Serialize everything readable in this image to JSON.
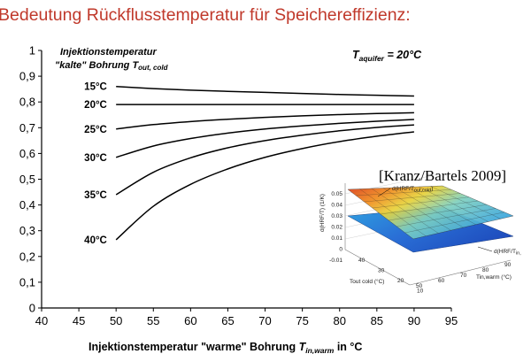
{
  "slide": {
    "title": "Bedeutung Rückflusstemperatur für Speichereffizienz:"
  },
  "chart_data": {
    "type": "line",
    "xlabel_main": "Injektionstemperatur \"warme\" Bohrung ",
    "xlabel_symbol": "T",
    "xlabel_sub": "in,warm",
    "xlabel_unit": " in °C",
    "ylabel": "",
    "xlim": [
      40,
      95
    ],
    "ylim": [
      0,
      1
    ],
    "x_ticks": [
      "40",
      "45",
      "50",
      "55",
      "60",
      "65",
      "70",
      "75",
      "80",
      "85",
      "90",
      "95"
    ],
    "y_ticks": [
      "0",
      "0,1",
      "0,2",
      "0,3",
      "0,4",
      "0,5",
      "0,6",
      "0,7",
      "0,8",
      "0,9",
      "1"
    ],
    "legend_title_line1": "Injektionstemperatur",
    "legend_title_line2_prefix": "\"kalte\" Bohrung ",
    "legend_title_symbol": "T",
    "legend_title_sub": "out, cold",
    "annotation": {
      "symbol": "T",
      "sub": "aquifer",
      "value": " = 20°C"
    },
    "grid": false,
    "series": [
      {
        "name": "15°C",
        "x": [
          50,
          55,
          60,
          65,
          70,
          75,
          80,
          85,
          90
        ],
        "values": [
          0.86,
          0.852,
          0.846,
          0.841,
          0.837,
          0.833,
          0.829,
          0.826,
          0.823
        ]
      },
      {
        "name": "20°C",
        "x": [
          50,
          55,
          60,
          65,
          70,
          75,
          80,
          85,
          90
        ],
        "values": [
          0.79,
          0.79,
          0.79,
          0.79,
          0.79,
          0.79,
          0.79,
          0.79,
          0.79
        ]
      },
      {
        "name": "25°C",
        "x": [
          50,
          55,
          60,
          65,
          70,
          75,
          80,
          85,
          90
        ],
        "values": [
          0.695,
          0.712,
          0.724,
          0.733,
          0.74,
          0.746,
          0.751,
          0.755,
          0.758
        ]
      },
      {
        "name": "30°C",
        "x": [
          50,
          55,
          60,
          65,
          70,
          75,
          80,
          85,
          90
        ],
        "values": [
          0.585,
          0.629,
          0.658,
          0.679,
          0.695,
          0.707,
          0.717,
          0.725,
          0.732
        ]
      },
      {
        "name": "35°C",
        "x": [
          50,
          55,
          60,
          65,
          70,
          75,
          80,
          85,
          90
        ],
        "values": [
          0.44,
          0.527,
          0.583,
          0.622,
          0.65,
          0.671,
          0.688,
          0.701,
          0.711
        ]
      },
      {
        "name": "40°C",
        "x": [
          50,
          55,
          60,
          65,
          70,
          75,
          80,
          85,
          90
        ],
        "values": [
          0.265,
          0.395,
          0.48,
          0.54,
          0.585,
          0.619,
          0.646,
          0.667,
          0.684
        ]
      }
    ]
  },
  "inset": {
    "citation": "[Kranz/Bartels 2009]",
    "surface_label_1": "d(HRF/T",
    "surface_label_1_sub": "out,cold",
    "surface_label_1_end": ")",
    "surface_label_2": "d(HRF/T",
    "surface_label_2_sub": "in,",
    "zaxis_label": "d(HRF/T) (1/K)",
    "xaxis_label": "Tout cold (°C)",
    "yaxis_label": "Tin,warm (°C)",
    "z_ticks": [
      "0.05",
      "0.04",
      "0.03",
      "0.02",
      "0.01",
      "0",
      "-0.01"
    ],
    "x_ticks": [
      "40",
      "30",
      "20",
      "10"
    ],
    "y_ticks": [
      "50",
      "60",
      "70",
      "80",
      "90"
    ]
  },
  "colors": {
    "title": "#c0392b",
    "lines": "#000000",
    "surface_high": "#d93a1a",
    "surface_mid": "#e8d23a",
    "surface_low": "#36a3e0",
    "surface_dark": "#1f5fcf"
  }
}
